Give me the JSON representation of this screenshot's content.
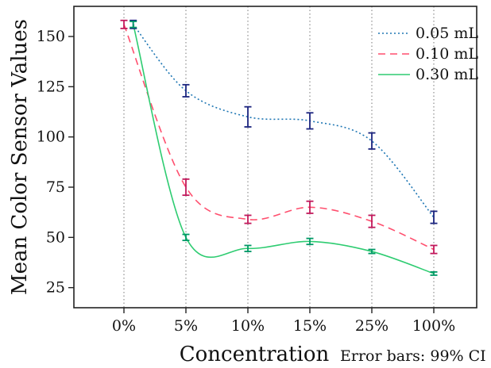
{
  "chart_data": {
    "type": "line",
    "xlabel": "Concentration",
    "ylabel": "Mean Color Sensor Values",
    "note": "Error bars: 99% CI",
    "categories": [
      "0%",
      "5%",
      "10%",
      "15%",
      "25%",
      "100%"
    ],
    "yticks": [
      25,
      50,
      75,
      100,
      125,
      150
    ],
    "ylim": [
      15,
      165
    ],
    "grid": "vertical dotted",
    "legend_position": "top-right",
    "series": [
      {
        "name": "0.05 mL",
        "color": "#1f77b4",
        "bar_color": "#1a237e",
        "dash": "dotted",
        "x_offset": 0.15,
        "values": [
          156,
          123,
          110,
          108,
          98,
          60
        ],
        "errors": [
          2,
          3,
          5,
          4,
          4,
          3
        ]
      },
      {
        "name": "0.10 mL",
        "color": "#ff4f6e",
        "bar_color": "#c2185b",
        "dash": "dashed",
        "x_offset": 0,
        "values": [
          156,
          75,
          59,
          65,
          58,
          44
        ],
        "errors": [
          2,
          4,
          2,
          3,
          3,
          2
        ]
      },
      {
        "name": "0.30 mL",
        "color": "#2ecc71",
        "bar_color": "#009966",
        "dash": "solid",
        "x_offset": 0.15,
        "values": [
          156,
          50,
          44.5,
          48,
          43,
          32
        ],
        "errors": [
          1.5,
          1.5,
          1.5,
          1.5,
          1,
          0.8
        ]
      }
    ]
  }
}
